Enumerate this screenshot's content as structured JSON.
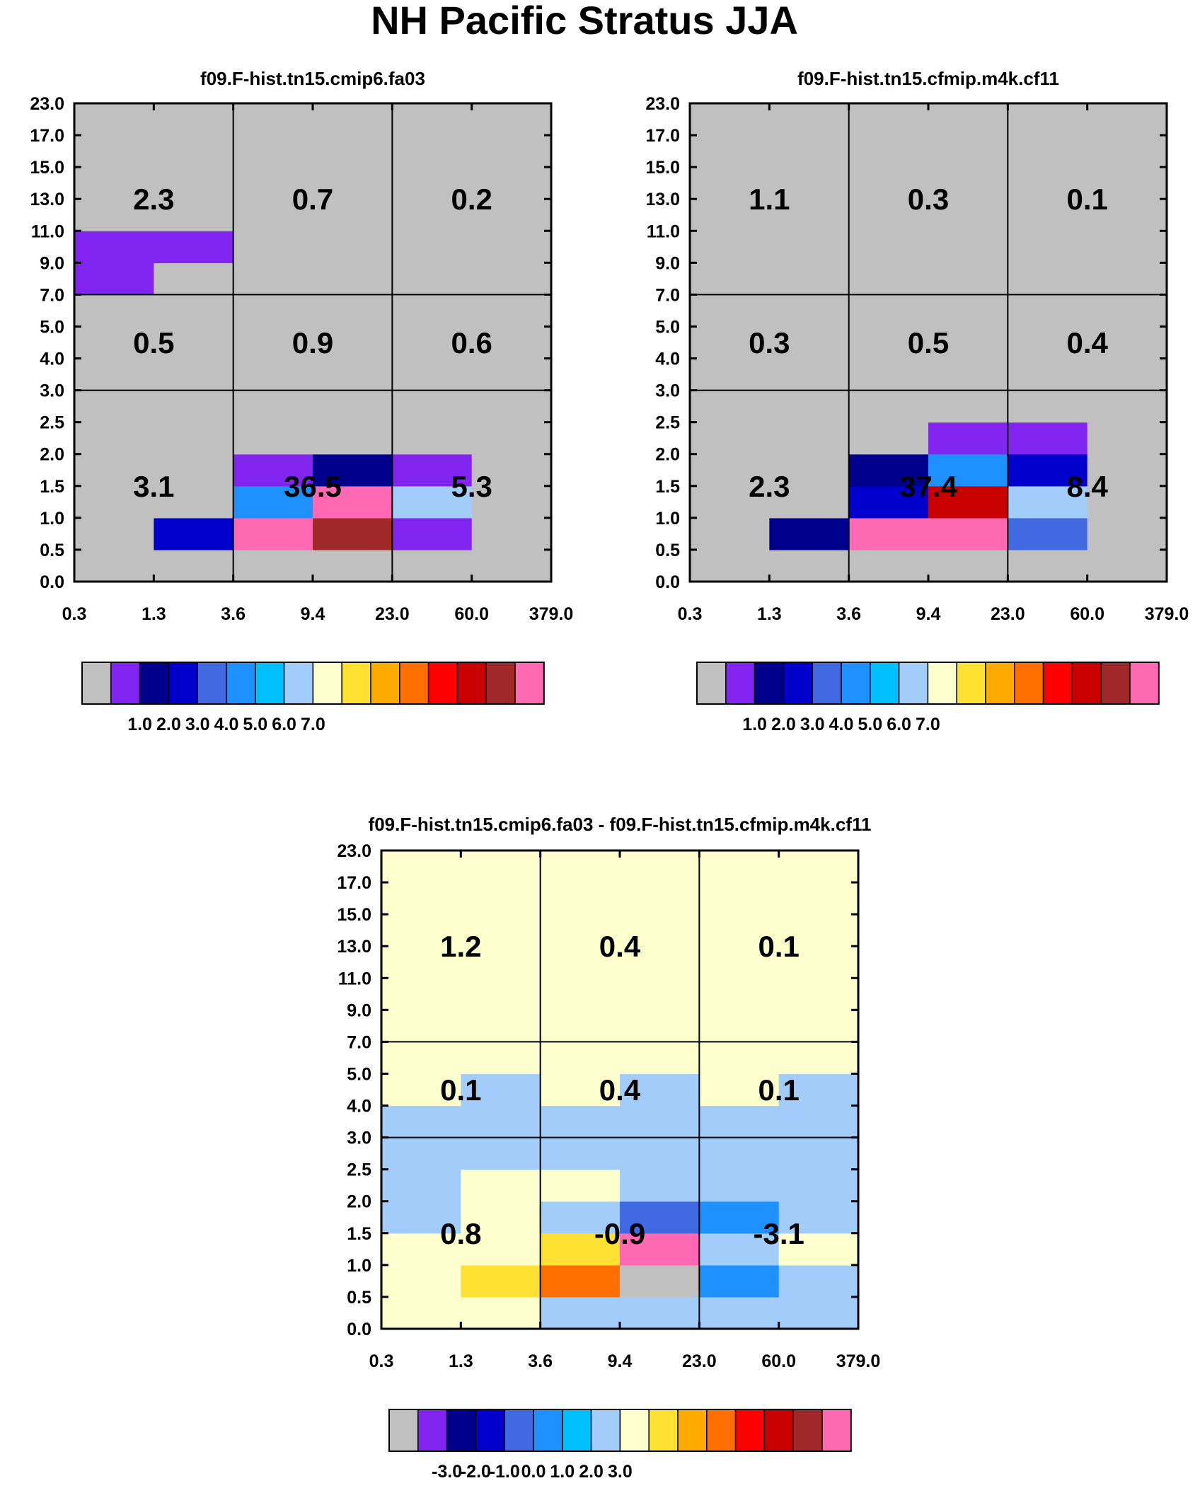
{
  "title": "NH Pacific Stratus JJA",
  "palette": [
    "#c0c0c0",
    "#8224f0",
    "#00008c",
    "#0000cd",
    "#4169e1",
    "#1e90ff",
    "#00bfff",
    "#a2cdfa",
    "#ffffcd",
    "#ffe133",
    "#ffaa00",
    "#ff6e00",
    "#ff0000",
    "#c80000",
    "#a02828",
    "#ff69b4"
  ],
  "chart_data": [
    {
      "type": "heatmap",
      "title": "f09.F-hist.tn15.cmip6.fa03",
      "x_ticks": [
        "0.3",
        "1.3",
        "3.6",
        "9.4",
        "23.0",
        "60.0",
        "379.0"
      ],
      "y_ticks": [
        "0.0",
        "0.5",
        "1.0",
        "1.5",
        "2.0",
        "2.5",
        "3.0",
        "4.0",
        "5.0",
        "7.0",
        "9.0",
        "11.0",
        "13.0",
        "15.0",
        "17.0",
        "23.0"
      ],
      "cells": [
        [
          0,
          0,
          0,
          0,
          0,
          0
        ],
        [
          0,
          3,
          15,
          14,
          1,
          0
        ],
        [
          0,
          0,
          5,
          15,
          7,
          0
        ],
        [
          0,
          0,
          1,
          2,
          1,
          0
        ],
        [
          0,
          0,
          0,
          0,
          0,
          0
        ],
        [
          0,
          0,
          0,
          0,
          0,
          0
        ],
        [
          0,
          0,
          0,
          0,
          0,
          0
        ],
        [
          0,
          0,
          0,
          0,
          0,
          0
        ],
        [
          0,
          0,
          0,
          0,
          0,
          0
        ],
        [
          1,
          0,
          0,
          0,
          0,
          0
        ],
        [
          1,
          1,
          0,
          0,
          0,
          0
        ],
        [
          0,
          0,
          0,
          0,
          0,
          0
        ],
        [
          0,
          0,
          0,
          0,
          0,
          0
        ],
        [
          0,
          0,
          0,
          0,
          0,
          0
        ],
        [
          0,
          0,
          0,
          0,
          0,
          0
        ]
      ],
      "group_labels": [
        [
          "3.1",
          "36.5",
          "5.3"
        ],
        [
          "0.5",
          "0.9",
          "0.6"
        ],
        [
          "2.3",
          "0.7",
          "0.2"
        ]
      ],
      "colorbar": {
        "labels": [
          "1.0",
          "2.0",
          "3.0",
          "4.0",
          "5.0",
          "6.0",
          "7.0"
        ],
        "boxes": [
          0,
          1,
          2,
          3,
          4,
          5,
          6,
          7,
          8,
          9,
          10,
          11,
          12,
          13,
          14,
          15
        ]
      }
    },
    {
      "type": "heatmap",
      "title": "f09.F-hist.tn15.cfmip.m4k.cf11",
      "x_ticks": [
        "0.3",
        "1.3",
        "3.6",
        "9.4",
        "23.0",
        "60.0",
        "379.0"
      ],
      "y_ticks": [
        "0.0",
        "0.5",
        "1.0",
        "1.5",
        "2.0",
        "2.5",
        "3.0",
        "4.0",
        "5.0",
        "7.0",
        "9.0",
        "11.0",
        "13.0",
        "15.0",
        "17.0",
        "23.0"
      ],
      "cells": [
        [
          0,
          0,
          0,
          0,
          0,
          0
        ],
        [
          0,
          2,
          15,
          15,
          4,
          0
        ],
        [
          0,
          0,
          3,
          13,
          7,
          0
        ],
        [
          0,
          0,
          2,
          5,
          3,
          0
        ],
        [
          0,
          0,
          0,
          1,
          1,
          0
        ],
        [
          0,
          0,
          0,
          0,
          0,
          0
        ],
        [
          0,
          0,
          0,
          0,
          0,
          0
        ],
        [
          0,
          0,
          0,
          0,
          0,
          0
        ],
        [
          0,
          0,
          0,
          0,
          0,
          0
        ],
        [
          0,
          0,
          0,
          0,
          0,
          0
        ],
        [
          0,
          0,
          0,
          0,
          0,
          0
        ],
        [
          0,
          0,
          0,
          0,
          0,
          0
        ],
        [
          0,
          0,
          0,
          0,
          0,
          0
        ],
        [
          0,
          0,
          0,
          0,
          0,
          0
        ],
        [
          0,
          0,
          0,
          0,
          0,
          0
        ]
      ],
      "group_labels": [
        [
          "2.3",
          "37.4",
          "8.4"
        ],
        [
          "0.3",
          "0.5",
          "0.4"
        ],
        [
          "1.1",
          "0.3",
          "0.1"
        ]
      ],
      "colorbar": {
        "labels": [
          "1.0",
          "2.0",
          "3.0",
          "4.0",
          "5.0",
          "6.0",
          "7.0"
        ],
        "boxes": [
          0,
          1,
          2,
          3,
          4,
          5,
          6,
          7,
          8,
          9,
          10,
          11,
          12,
          13,
          14,
          15
        ]
      }
    },
    {
      "type": "heatmap",
      "title": "f09.F-hist.tn15.cmip6.fa03 - f09.F-hist.tn15.cfmip.m4k.cf11",
      "x_ticks": [
        "0.3",
        "1.3",
        "3.6",
        "9.4",
        "23.0",
        "60.0",
        "379.0"
      ],
      "y_ticks": [
        "0.0",
        "0.5",
        "1.0",
        "1.5",
        "2.0",
        "2.5",
        "3.0",
        "4.0",
        "5.0",
        "7.0",
        "9.0",
        "11.0",
        "13.0",
        "15.0",
        "17.0",
        "23.0"
      ],
      "cells": [
        [
          8,
          8,
          7,
          7,
          7,
          7
        ],
        [
          8,
          9,
          11,
          0,
          5,
          7
        ],
        [
          8,
          8,
          9,
          15,
          7,
          8
        ],
        [
          7,
          8,
          7,
          4,
          5,
          7
        ],
        [
          7,
          8,
          8,
          7,
          7,
          7
        ],
        [
          7,
          7,
          7,
          7,
          7,
          7
        ],
        [
          7,
          7,
          7,
          7,
          7,
          7
        ],
        [
          8,
          7,
          8,
          7,
          8,
          7
        ],
        [
          8,
          8,
          8,
          8,
          8,
          8
        ],
        [
          8,
          8,
          8,
          8,
          8,
          8
        ],
        [
          8,
          8,
          8,
          8,
          8,
          8
        ],
        [
          8,
          8,
          8,
          8,
          8,
          8
        ],
        [
          8,
          8,
          8,
          8,
          8,
          8
        ],
        [
          8,
          8,
          8,
          8,
          8,
          8
        ],
        [
          8,
          8,
          8,
          8,
          8,
          8
        ]
      ],
      "group_labels": [
        [
          "0.8",
          "-0.9",
          "-3.1"
        ],
        [
          "0.1",
          "0.4",
          "0.1"
        ],
        [
          "1.2",
          "0.4",
          "0.1"
        ]
      ],
      "colorbar": {
        "labels": [
          "-3.0",
          "-2.0",
          "-1.0",
          "0.0",
          "1.0",
          "2.0",
          "3.0"
        ],
        "boxes": [
          0,
          1,
          2,
          3,
          4,
          5,
          6,
          7,
          8,
          9,
          10,
          11,
          12,
          13,
          14,
          15
        ]
      }
    }
  ]
}
